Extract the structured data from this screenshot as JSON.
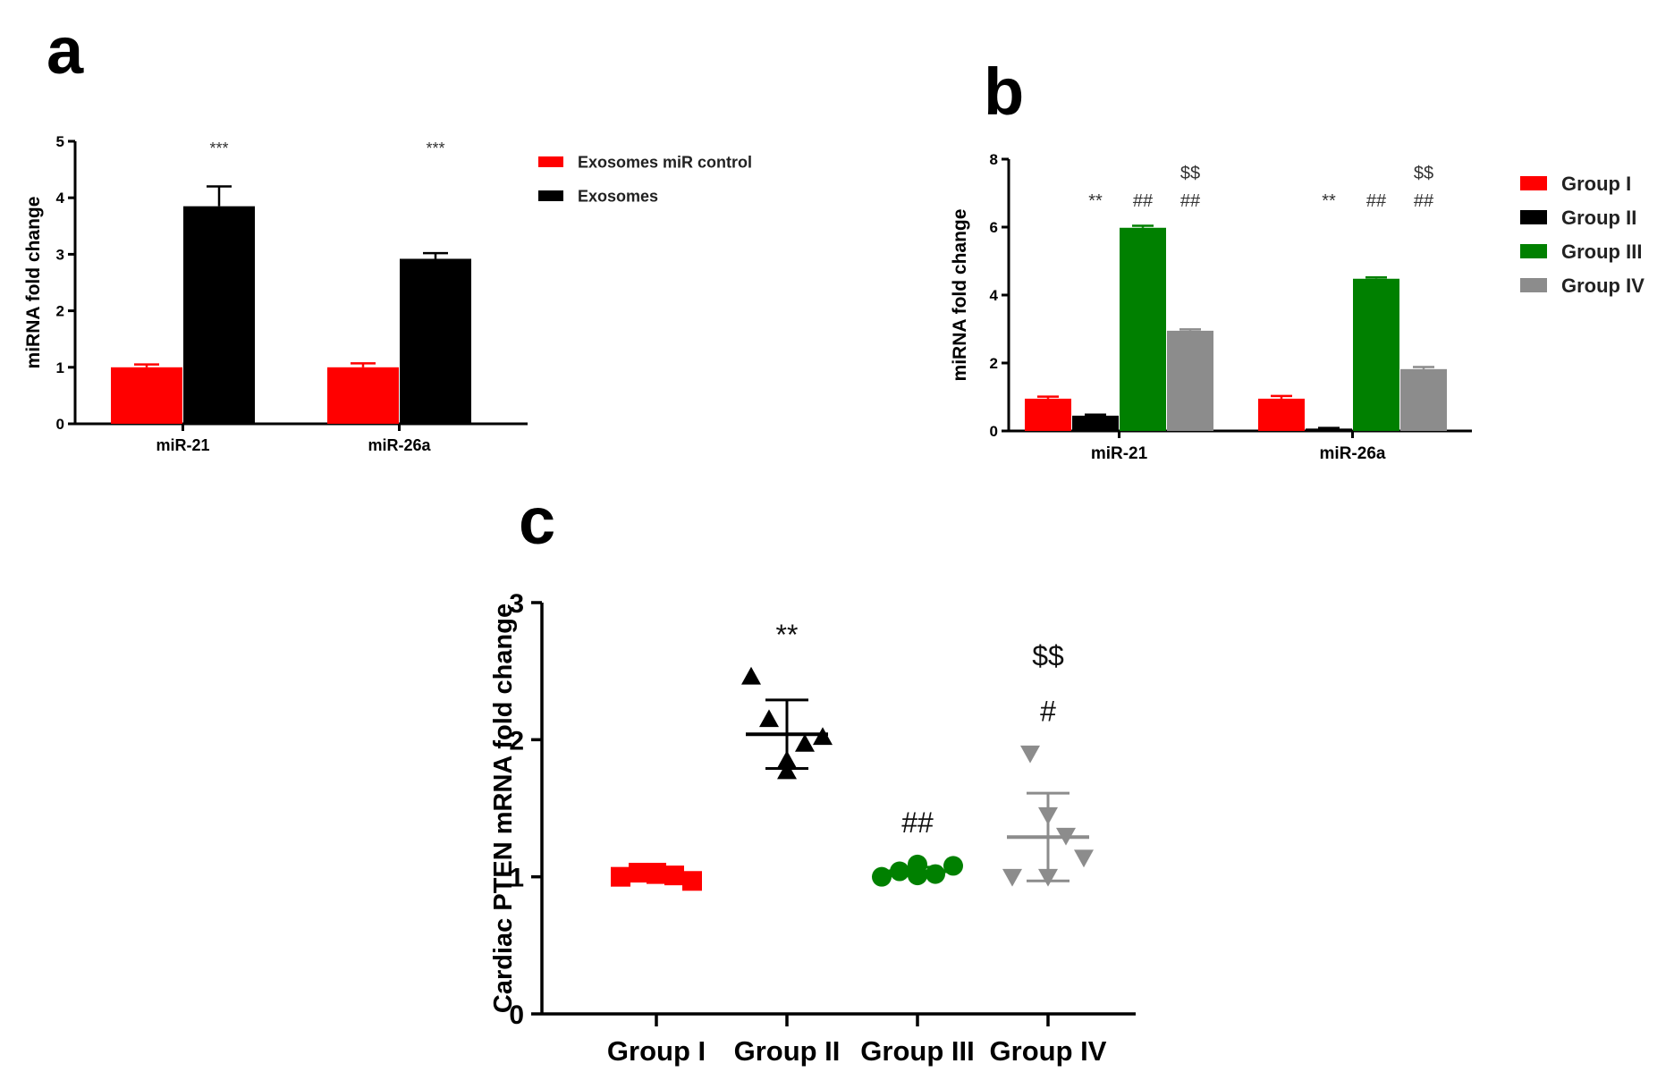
{
  "panels": [
    {
      "letter": "a"
    },
    {
      "letter": "b"
    },
    {
      "letter": "c"
    }
  ],
  "colors": {
    "red": "#ff0000",
    "black": "#000000",
    "green": "#008000",
    "grey": "#8c8c8c",
    "axis": "#000000"
  },
  "chart_data": [
    {
      "panel": "a",
      "type": "bar",
      "title": "",
      "xlabel": "",
      "ylabel": "miRNA fold change",
      "ylim": [
        0,
        5
      ],
      "yticks": [
        "0",
        "1",
        "2",
        "3",
        "4",
        "5"
      ],
      "categories": [
        "miR-21",
        "miR-26a"
      ],
      "legend_position": "right",
      "series": [
        {
          "name": "Exosomes miR control",
          "color": "#ff0000",
          "values": [
            1.0,
            1.0
          ],
          "errors": [
            0.05,
            0.07
          ]
        },
        {
          "name": "Exosomes",
          "color": "#000000",
          "values": [
            3.85,
            2.92
          ],
          "errors": [
            0.35,
            0.1
          ]
        }
      ],
      "annotations": [
        {
          "category": 0,
          "series": 1,
          "text": "***"
        },
        {
          "category": 1,
          "series": 1,
          "text": "***"
        }
      ]
    },
    {
      "panel": "b",
      "type": "bar",
      "title": "",
      "xlabel": "",
      "ylabel": "miRNA fold change",
      "ylim": [
        0,
        8
      ],
      "yticks": [
        "0",
        "2",
        "4",
        "6",
        "8"
      ],
      "categories": [
        "miR-21",
        "miR-26a"
      ],
      "legend_position": "right",
      "series": [
        {
          "name": "Group I",
          "color": "#ff0000",
          "values": [
            0.95,
            0.95
          ],
          "errors": [
            0.06,
            0.08
          ]
        },
        {
          "name": "Group II",
          "color": "#000000",
          "values": [
            0.45,
            0.07
          ],
          "errors": [
            0.03,
            0.02
          ]
        },
        {
          "name": "Group III",
          "color": "#008000",
          "values": [
            5.98,
            4.48
          ],
          "errors": [
            0.06,
            0.04
          ]
        },
        {
          "name": "Group IV",
          "color": "#8c8c8c",
          "values": [
            2.95,
            1.82
          ],
          "errors": [
            0.04,
            0.06
          ]
        }
      ],
      "annotations": [
        {
          "category": 0,
          "series": 1,
          "lines": [
            "**"
          ]
        },
        {
          "category": 0,
          "series": 2,
          "lines": [
            "##"
          ]
        },
        {
          "category": 0,
          "series": 3,
          "lines": [
            "$$",
            "##"
          ]
        },
        {
          "category": 1,
          "series": 1,
          "lines": [
            "**"
          ]
        },
        {
          "category": 1,
          "series": 2,
          "lines": [
            "##"
          ]
        },
        {
          "category": 1,
          "series": 3,
          "lines": [
            "$$",
            "##"
          ]
        }
      ]
    },
    {
      "panel": "c",
      "type": "scatter",
      "title": "",
      "xlabel": "",
      "ylabel": "Cardiac PTEN mRNA fold change",
      "ylim": [
        0,
        3
      ],
      "yticks": [
        "0",
        "1",
        "2",
        "3"
      ],
      "categories": [
        "Group I",
        "Group II",
        "Group III",
        "Group IV"
      ],
      "series": [
        {
          "name": "Group I",
          "marker": "square",
          "color": "#ff0000",
          "points": [
            1.0,
            1.03,
            1.02,
            1.01,
            0.97,
            1.03
          ],
          "mean": 1.01,
          "sd": 0.02,
          "annotation": []
        },
        {
          "name": "Group II",
          "marker": "triangle-up",
          "color": "#000000",
          "points": [
            2.46,
            2.15,
            1.77,
            1.97,
            2.02,
            1.85
          ],
          "mean": 2.04,
          "sd": 0.25,
          "annotation": [
            "**"
          ]
        },
        {
          "name": "Group III",
          "marker": "circle",
          "color": "#008000",
          "points": [
            1.0,
            1.04,
            1.09,
            1.02,
            1.08,
            1.01
          ],
          "mean": 1.04,
          "sd": 0.03,
          "annotation": [
            "##"
          ]
        },
        {
          "name": "Group IV",
          "marker": "triangle-down",
          "color": "#8c8c8c",
          "points": [
            1.0,
            1.9,
            1.45,
            1.3,
            1.14,
            1.0
          ],
          "mean": 1.29,
          "sd": 0.32,
          "annotation": [
            "$$",
            "#"
          ]
        }
      ]
    }
  ]
}
